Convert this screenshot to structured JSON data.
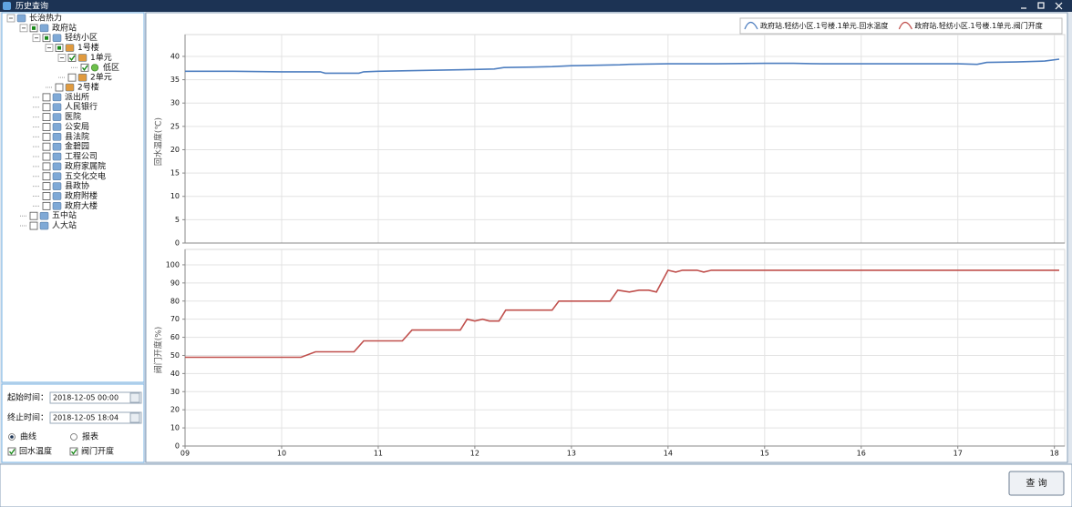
{
  "window": {
    "title": "历史查询"
  },
  "tree": {
    "label": "长治热力",
    "children": [
      {
        "label": "政府站",
        "checked": "partial",
        "children": [
          {
            "label": "轻纺小区",
            "checked": "partial",
            "children": [
              {
                "label": "1号楼",
                "checked": "partial",
                "children": [
                  {
                    "label": "1单元",
                    "checked": true,
                    "children": [
                      {
                        "label": "低区",
                        "checked": true
                      }
                    ]
                  },
                  {
                    "label": "2单元",
                    "checked": false
                  }
                ]
              },
              {
                "label": "2号楼",
                "checked": false
              }
            ]
          },
          {
            "label": "派出所",
            "checked": false
          },
          {
            "label": "人民银行",
            "checked": false
          },
          {
            "label": "医院",
            "checked": false
          },
          {
            "label": "公安局",
            "checked": false
          },
          {
            "label": "县法院",
            "checked": false
          },
          {
            "label": "金碧园",
            "checked": false
          },
          {
            "label": "工程公司",
            "checked": false
          },
          {
            "label": "政府家属院",
            "checked": false
          },
          {
            "label": "五交化交电",
            "checked": false
          },
          {
            "label": "县政协",
            "checked": false
          },
          {
            "label": "政府附楼",
            "checked": false
          },
          {
            "label": "政府大楼",
            "checked": false
          }
        ]
      },
      {
        "label": "五中站",
        "checked": false
      },
      {
        "label": "人大站",
        "checked": false
      }
    ]
  },
  "query_form": {
    "start_label": "起始时间：",
    "start_value": "2018-12-05 00:00",
    "end_label": "终止时间：",
    "end_value": "2018-12-05 18:04",
    "mode_options": [
      {
        "label": "曲线",
        "selected": true
      },
      {
        "label": "报表",
        "selected": false
      }
    ],
    "series_options": [
      {
        "label": "回水温度",
        "checked": true
      },
      {
        "label": "阀门开度",
        "checked": true
      }
    ]
  },
  "chart_data": [
    {
      "type": "line",
      "y_label": "回水温度(℃)",
      "x": [
        9,
        9.5,
        10,
        10.4,
        10.45,
        10.8,
        10.85,
        11,
        11.5,
        12,
        12.2,
        12.3,
        12.6,
        12.8,
        13,
        13.5,
        13.6,
        14,
        14.5,
        15,
        15.3,
        15.6,
        16,
        16.5,
        17,
        17.2,
        17.3,
        17.6,
        17.9,
        18.05
      ],
      "series": [
        {
          "name": "政府站.轻纺小区.1号楼.1单元.回水温度",
          "color": "#4f7fc0",
          "values": [
            36.8,
            36.8,
            36.7,
            36.7,
            36.4,
            36.4,
            36.7,
            36.8,
            37.0,
            37.2,
            37.3,
            37.6,
            37.7,
            37.8,
            38.0,
            38.2,
            38.3,
            38.4,
            38.4,
            38.5,
            38.5,
            38.4,
            38.4,
            38.4,
            38.4,
            38.3,
            38.7,
            38.8,
            39.0,
            39.4
          ]
        }
      ],
      "xlim": [
        9,
        18.05
      ],
      "ylim": [
        0,
        43.5
      ],
      "yticks": [
        0,
        5,
        10,
        15,
        20,
        25,
        30,
        35,
        40
      ],
      "grid": true
    },
    {
      "type": "line",
      "y_label": "阀门开度(%)",
      "x": [
        9,
        10.2,
        10.35,
        10.75,
        10.85,
        11.25,
        11.35,
        11.85,
        11.92,
        12.0,
        12.08,
        12.15,
        12.25,
        12.32,
        12.8,
        12.87,
        13.4,
        13.48,
        13.6,
        13.7,
        13.8,
        13.88,
        14.0,
        14.08,
        14.15,
        14.3,
        14.37,
        14.45,
        18.05
      ],
      "series": [
        {
          "name": "政府站.轻纺小区.1号楼.1单元.阀门开度",
          "color": "#c0504d",
          "values": [
            49,
            49,
            52,
            52,
            58,
            58,
            64,
            64,
            70,
            69,
            70,
            69,
            69,
            75,
            75,
            80,
            80,
            86,
            85,
            86,
            86,
            85,
            97,
            96,
            97,
            97,
            96,
            97,
            97
          ]
        }
      ],
      "xlim": [
        9,
        18.05
      ],
      "ylim": [
        0,
        106
      ],
      "xticks": [
        {
          "value": 9,
          "label": "09"
        },
        10,
        11,
        12,
        13,
        14,
        15,
        16,
        17,
        18
      ],
      "yticks": [
        0,
        10,
        20,
        30,
        40,
        50,
        60,
        70,
        80,
        90,
        100
      ],
      "grid": true
    }
  ],
  "footer": {
    "button": "查 询"
  }
}
